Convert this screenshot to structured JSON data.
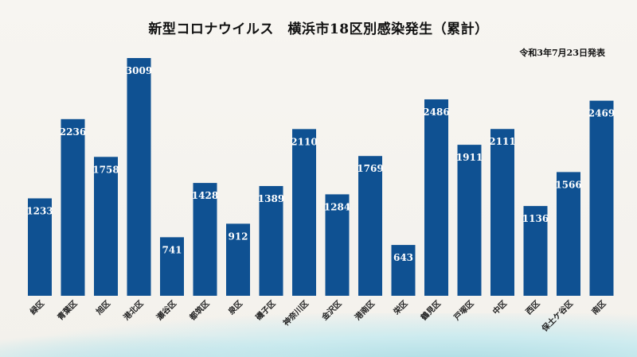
{
  "chart_data": {
    "type": "bar",
    "title": "新型コロナウイルス　横浜市18区別感染発生（累計）",
    "subtitle": "令和3年7月23日発表",
    "categories": [
      "緑区",
      "青葉区",
      "旭区",
      "港北区",
      "瀬谷区",
      "都筑区",
      "泉区",
      "磯子区",
      "神奈川区",
      "金沢区",
      "港南区",
      "栄区",
      "鶴見区",
      "戸塚区",
      "中区",
      "西区",
      "保土ケ谷区",
      "南区"
    ],
    "values": [
      1233,
      2236,
      1758,
      3009,
      741,
      1428,
      912,
      1389,
      2110,
      1284,
      1769,
      643,
      2486,
      1911,
      2111,
      1136,
      1566,
      2469
    ],
    "ylim": [
      0,
      3009
    ],
    "bar_color": "#0f5192",
    "grid": false,
    "legend": "none"
  }
}
